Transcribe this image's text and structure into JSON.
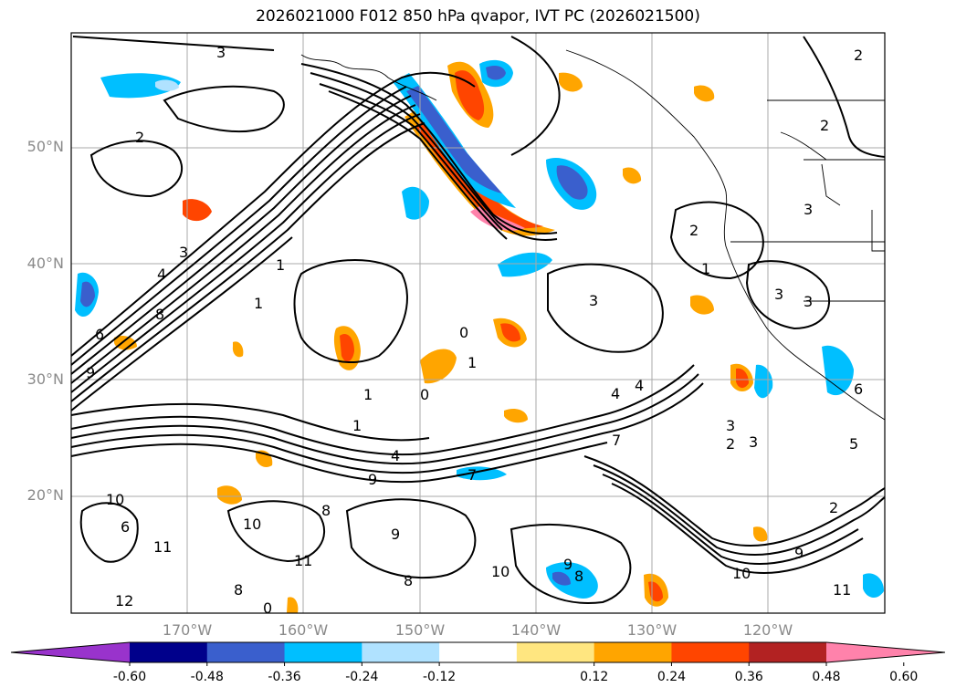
{
  "title": "2026021000 F012 850 hPa qvapor, IVT PC (2026021500)",
  "lat_labels": [
    "50°N",
    "40°N",
    "30°N",
    "20°N"
  ],
  "lon_labels": [
    "170°W",
    "160°W",
    "150°W",
    "140°W",
    "130°W",
    "120°W"
  ],
  "contour_labels": [
    "3",
    "2",
    "2",
    "2",
    "3",
    "3",
    "4",
    "8",
    "1",
    "3",
    "1",
    "1",
    "0",
    "0",
    "1",
    "4",
    "3",
    "3",
    "4",
    "4",
    "2",
    "3",
    "2",
    "3",
    "1",
    "1",
    "5",
    "6",
    "7",
    "9",
    "6",
    "10",
    "11",
    "6",
    "8",
    "8",
    "0",
    "8",
    "9",
    "9",
    "10",
    "11",
    "10",
    "9",
    "8",
    "7",
    "2",
    "10",
    "11",
    "12",
    "9"
  ],
  "colorbar": {
    "ticks": [
      "-0.60",
      "-0.48",
      "-0.36",
      "-0.24",
      "-0.12",
      "0.12",
      "0.24",
      "0.36",
      "0.48",
      "0.60"
    ],
    "colors": [
      "#9933cc",
      "#00008b",
      "#3a5fcd",
      "#00bfff",
      "#b0e2ff",
      "#ffffff",
      "#ffe680",
      "#ffa500",
      "#ff4500",
      "#b22222",
      "#ff82ab"
    ]
  }
}
